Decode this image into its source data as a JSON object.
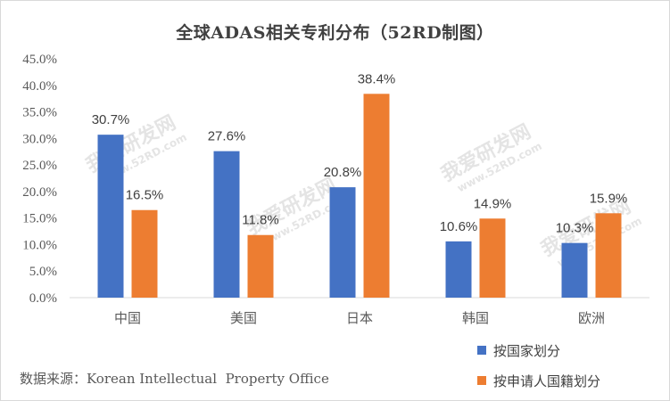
{
  "chart_data": {
    "type": "bar",
    "title": "全球ADAS相关专利分布（52RD制图）",
    "categories": [
      "中国",
      "美国",
      "日本",
      "韩国",
      "欧洲"
    ],
    "series": [
      {
        "name": "按国家划分",
        "values": [
          30.7,
          27.6,
          20.8,
          10.6,
          10.3
        ],
        "labels": [
          "30.7%",
          "27.6%",
          "20.8%",
          "10.6%",
          "10.3%"
        ],
        "color": "#4472c4"
      },
      {
        "name": "按申请人国籍划分",
        "values": [
          16.5,
          11.8,
          38.4,
          14.9,
          15.9
        ],
        "labels": [
          "16.5%",
          "11.8%",
          "38.4%",
          "14.9%",
          "15.9%"
        ],
        "color": "#ed7d31"
      }
    ],
    "ylim": [
      0,
      45
    ],
    "yticks": [
      "0.0%",
      "5.0%",
      "10.0%",
      "15.0%",
      "20.0%",
      "25.0%",
      "30.0%",
      "35.0%",
      "40.0%",
      "45.0%"
    ],
    "xlabel": "",
    "ylabel": "",
    "grid": false,
    "legend_position": "bottom-right"
  },
  "source": "数据来源：Korean Intellectual  Property Office",
  "watermark": {
    "text": "我爱研发网",
    "url": "www.52RD.com"
  }
}
